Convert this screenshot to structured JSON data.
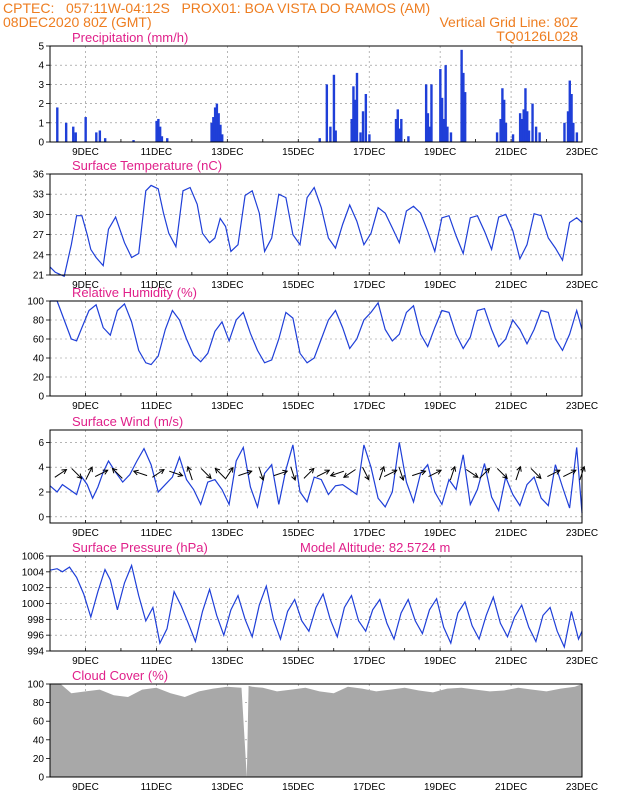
{
  "header": {
    "line1_left": "CPTEC:   057:11W-04:12S   PROX01: BOA VISTA DO RAMOS (AM)",
    "line2_left": "08DEC2020 80Z (GMT)",
    "line2_right": "Vertical Grid Line: 80Z",
    "line3_right": "TQ0126L028"
  },
  "colors": {
    "header": "#ee7d20",
    "title": "#e0208a",
    "series": "#1f3fd8",
    "cloud": "#a8a8a8",
    "grid": "#888888"
  },
  "chart_data": [
    {
      "id": "precip",
      "type": "bar",
      "title": "Precipitation (mm/h)",
      "yticks": [
        0,
        1,
        2,
        3,
        4,
        5
      ],
      "ylim": [
        0,
        5
      ],
      "xticklabels": [
        "9DEC",
        "11DEC",
        "13DEC",
        "15DEC",
        "17DEC",
        "19DEC",
        "21DEC",
        "23DEC"
      ],
      "xlim": [
        8,
        23
      ],
      "x": [
        8.2,
        8.45,
        8.65,
        8.72,
        9.0,
        9.3,
        9.4,
        9.55,
        10.35,
        11.0,
        11.05,
        11.1,
        11.15,
        11.3,
        12.55,
        12.6,
        12.65,
        12.7,
        12.75,
        12.8,
        12.85,
        15.6,
        15.8,
        15.9,
        16.0,
        16.05,
        16.5,
        16.55,
        16.6,
        16.65,
        16.75,
        16.82,
        16.9,
        17.0,
        17.75,
        17.8,
        17.85,
        17.9,
        18.1,
        18.6,
        18.65,
        18.7,
        18.75,
        19.0,
        19.05,
        19.1,
        19.15,
        19.2,
        19.3,
        19.6,
        19.65,
        19.7,
        20.6,
        20.7,
        20.75,
        20.8,
        20.85,
        21.05,
        21.25,
        21.3,
        21.35,
        21.4,
        21.45,
        21.5,
        21.6,
        21.7,
        21.8,
        22.5,
        22.6,
        22.65,
        22.7,
        22.75,
        22.85
      ],
      "values": [
        1.8,
        1.0,
        0.8,
        0.5,
        1.3,
        0.5,
        0.6,
        0.2,
        0.1,
        1.1,
        1.2,
        0.8,
        0.3,
        0.2,
        1.0,
        1.3,
        1.8,
        2.0,
        1.5,
        0.9,
        0.4,
        0.2,
        3.0,
        0.8,
        3.5,
        0.6,
        1.2,
        2.9,
        2.2,
        3.6,
        0.5,
        1.6,
        2.5,
        0.4,
        1.2,
        1.7,
        0.7,
        1.2,
        0.3,
        3.0,
        1.5,
        0.8,
        3.0,
        3.8,
        2.3,
        1.2,
        4.0,
        0.8,
        0.5,
        4.8,
        3.6,
        2.6,
        0.5,
        1.2,
        2.8,
        2.2,
        1.0,
        0.4,
        1.5,
        1.2,
        1.7,
        2.8,
        1.6,
        0.6,
        2.0,
        0.8,
        0.5,
        1.0,
        1.6,
        3.2,
        2.5,
        1.0,
        0.5
      ]
    },
    {
      "id": "temp",
      "type": "line",
      "title": "Surface Temperature (nC)",
      "yticks": [
        21,
        24,
        27,
        30,
        33,
        36
      ],
      "ylim": [
        21,
        36
      ],
      "xticklabels": [
        "9DEC",
        "11DEC",
        "13DEC",
        "15DEC",
        "17DEC",
        "19DEC",
        "21DEC",
        "23DEC"
      ],
      "xlim": [
        8,
        23
      ],
      "x": [
        8,
        8.15,
        8.4,
        8.6,
        8.75,
        8.9,
        9.05,
        9.15,
        9.3,
        9.5,
        9.65,
        9.85,
        10.1,
        10.3,
        10.5,
        10.7,
        10.85,
        11.05,
        11.2,
        11.35,
        11.55,
        11.75,
        11.95,
        12.15,
        12.3,
        12.5,
        12.65,
        12.8,
        12.95,
        13.1,
        13.3,
        13.5,
        13.7,
        13.9,
        14.05,
        14.25,
        14.45,
        14.65,
        14.85,
        15.05,
        15.25,
        15.45,
        15.65,
        15.85,
        16.05,
        16.25,
        16.45,
        16.65,
        16.85,
        17.05,
        17.25,
        17.45,
        17.65,
        17.85,
        18.05,
        18.25,
        18.45,
        18.65,
        18.85,
        19.05,
        19.25,
        19.45,
        19.65,
        19.85,
        20.05,
        20.25,
        20.45,
        20.65,
        20.85,
        21.05,
        21.25,
        21.45,
        21.65,
        21.85,
        22.05,
        22.25,
        22.45,
        22.65,
        22.85,
        23
      ],
      "values": [
        22.2,
        21.4,
        20.8,
        25.5,
        29.8,
        29.8,
        27,
        24.8,
        23.6,
        22.4,
        27.8,
        29.6,
        25.8,
        23.6,
        24.2,
        33.5,
        34.3,
        33.8,
        30.2,
        27.2,
        25.2,
        33.5,
        34,
        31.5,
        27.2,
        25.8,
        26.5,
        29.4,
        28.2,
        24.5,
        25.5,
        32.8,
        33.5,
        30.2,
        24.5,
        26.5,
        33,
        32.5,
        27,
        25.5,
        32.5,
        34,
        31,
        26.5,
        25,
        28.5,
        31.4,
        29,
        25.5,
        27.2,
        31,
        30.2,
        28,
        25.8,
        30.5,
        31.2,
        30.2,
        27.5,
        24.5,
        29.5,
        29.8,
        26.8,
        24.2,
        29.5,
        29.8,
        27.5,
        24.8,
        29.6,
        30,
        27.6,
        23.4,
        25.5,
        30.1,
        29.8,
        26.5,
        25,
        23.2,
        28.8,
        29.5,
        28.8
      ]
    },
    {
      "id": "rh",
      "type": "line",
      "title": "Relative Humidity (%)",
      "yticks": [
        0,
        20,
        40,
        60,
        80,
        100
      ],
      "ylim": [
        0,
        100
      ],
      "xticklabels": [
        "9DEC",
        "11DEC",
        "13DEC",
        "15DEC",
        "17DEC",
        "19DEC",
        "21DEC",
        "23DEC"
      ],
      "xlim": [
        8,
        23
      ],
      "x": [
        8,
        8.2,
        8.4,
        8.6,
        8.75,
        8.9,
        9.1,
        9.3,
        9.5,
        9.7,
        9.9,
        10.1,
        10.3,
        10.5,
        10.7,
        10.85,
        11.05,
        11.25,
        11.45,
        11.65,
        11.85,
        12.05,
        12.25,
        12.45,
        12.65,
        12.85,
        13.05,
        13.25,
        13.45,
        13.65,
        13.85,
        14.05,
        14.25,
        14.45,
        14.65,
        14.85,
        15.05,
        15.25,
        15.45,
        15.65,
        15.85,
        16.05,
        16.25,
        16.45,
        16.65,
        16.85,
        17.05,
        17.25,
        17.45,
        17.65,
        17.85,
        18.05,
        18.25,
        18.45,
        18.65,
        18.85,
        19.05,
        19.25,
        19.45,
        19.65,
        19.85,
        20.05,
        20.25,
        20.45,
        20.65,
        20.85,
        21.05,
        21.25,
        21.45,
        21.65,
        21.85,
        22.05,
        22.25,
        22.45,
        22.65,
        22.85,
        23
      ],
      "values": [
        100,
        100,
        80,
        60,
        58,
        72,
        90,
        96,
        72,
        64,
        90,
        97,
        78,
        48,
        35,
        33,
        42,
        70,
        90,
        80,
        60,
        43,
        36,
        45,
        68,
        78,
        58,
        80,
        88,
        66,
        48,
        35,
        38,
        60,
        88,
        82,
        45,
        35,
        40,
        60,
        80,
        90,
        72,
        50,
        60,
        80,
        88,
        98,
        70,
        58,
        65,
        88,
        95,
        65,
        52,
        72,
        90,
        88,
        65,
        50,
        62,
        90,
        92,
        70,
        52,
        60,
        80,
        70,
        55,
        70,
        90,
        88,
        60,
        48,
        65,
        90,
        70
      ]
    },
    {
      "id": "wind",
      "type": "line",
      "title": "Surface Wind (m/s)",
      "yticks": [
        0,
        2,
        4,
        6
      ],
      "ylim": [
        -0.5,
        7
      ],
      "xticklabels": [
        "9DEC",
        "11DEC",
        "13DEC",
        "15DEC",
        "17DEC",
        "19DEC",
        "21DEC",
        "23DEC"
      ],
      "xlim": [
        8,
        23
      ],
      "x": [
        8,
        8.2,
        8.35,
        8.55,
        8.75,
        8.9,
        9.05,
        9.2,
        9.35,
        9.5,
        9.65,
        9.85,
        10.05,
        10.25,
        10.45,
        10.65,
        10.85,
        11.05,
        11.25,
        11.45,
        11.65,
        11.85,
        12.05,
        12.25,
        12.45,
        12.65,
        12.85,
        13.05,
        13.25,
        13.45,
        13.65,
        13.85,
        14.05,
        14.25,
        14.45,
        14.65,
        14.85,
        15.05,
        15.25,
        15.45,
        15.65,
        15.85,
        16.05,
        16.25,
        16.45,
        16.65,
        16.85,
        17.05,
        17.25,
        17.45,
        17.65,
        17.85,
        18.05,
        18.25,
        18.45,
        18.65,
        18.85,
        19.05,
        19.25,
        19.45,
        19.65,
        19.85,
        20.05,
        20.25,
        20.45,
        20.65,
        20.85,
        21.05,
        21.25,
        21.45,
        21.65,
        21.85,
        22.05,
        22.25,
        22.45,
        22.65,
        22.85,
        23
      ],
      "values": [
        2.5,
        2.0,
        2.6,
        2.2,
        1.8,
        3.2,
        2.6,
        1.5,
        2.4,
        3.6,
        4.5,
        3.6,
        2.8,
        3.4,
        4.5,
        5.5,
        4.2,
        2.0,
        2.6,
        3.2,
        4.8,
        3.0,
        2.2,
        1.0,
        2.8,
        3.0,
        2.2,
        1.0,
        4.5,
        5.6,
        2.4,
        0.8,
        3.5,
        4.2,
        1.0,
        3.8,
        5.8,
        2.0,
        1.2,
        3.2,
        3.0,
        1.8,
        2.5,
        2.6,
        2.2,
        1.8,
        5.8,
        4.0,
        1.5,
        0.8,
        2.0,
        6.0,
        2.8,
        1.2,
        3.5,
        4.2,
        2.0,
        1.0,
        3.0,
        2.2,
        5.0,
        1.0,
        2.2,
        4.3,
        1.6,
        0.5,
        3.2,
        1.8,
        0.9,
        2.6,
        3.2,
        1.5,
        0.9,
        4.2,
        2.4,
        0.7,
        5.6,
        0.3
      ]
    },
    {
      "id": "pres",
      "type": "line",
      "title": "Surface Pressure (hPa)",
      "annotation": "Model Altitude: 82.5724 m",
      "yticks": [
        994,
        996,
        998,
        1000,
        1002,
        1004,
        1006
      ],
      "ylim": [
        994,
        1006
      ],
      "xticklabels": [
        "9DEC",
        "11DEC",
        "13DEC",
        "15DEC",
        "17DEC",
        "19DEC",
        "21DEC",
        "23DEC"
      ],
      "xlim": [
        8,
        23
      ],
      "x": [
        8,
        8.2,
        8.35,
        8.55,
        8.75,
        8.95,
        9.15,
        9.35,
        9.55,
        9.7,
        9.9,
        10.1,
        10.3,
        10.5,
        10.7,
        10.9,
        11.1,
        11.3,
        11.5,
        11.7,
        11.9,
        12.1,
        12.3,
        12.5,
        12.7,
        12.9,
        13.1,
        13.3,
        13.5,
        13.7,
        13.9,
        14.1,
        14.3,
        14.5,
        14.7,
        14.9,
        15.1,
        15.3,
        15.5,
        15.7,
        15.9,
        16.1,
        16.3,
        16.5,
        16.7,
        16.9,
        17.1,
        17.3,
        17.5,
        17.7,
        17.9,
        18.1,
        18.3,
        18.5,
        18.7,
        18.9,
        19.1,
        19.3,
        19.5,
        19.7,
        19.9,
        20.1,
        20.3,
        20.5,
        20.7,
        20.9,
        21.1,
        21.3,
        21.5,
        21.7,
        21.9,
        22.1,
        22.3,
        22.5,
        22.7,
        22.9,
        23
      ],
      "values": [
        1004.2,
        1004.4,
        1004.0,
        1004.6,
        1003.3,
        1001.2,
        998.3,
        1001.5,
        1004.3,
        1003.0,
        999.2,
        1002.6,
        1004.8,
        1001.0,
        997.8,
        999.5,
        995.0,
        996.8,
        1001.5,
        999.7,
        997.5,
        995.2,
        999.0,
        1001.8,
        998.5,
        996.0,
        999.2,
        1001.0,
        998.0,
        995.8,
        999.8,
        1002.2,
        998.0,
        995.5,
        999.0,
        1000.5,
        997.8,
        996.5,
        999.5,
        1001.2,
        998.0,
        995.8,
        999.5,
        1001.0,
        997.8,
        996.5,
        999.2,
        1000.5,
        997.5,
        995.5,
        998.8,
        1000.5,
        997.8,
        996.2,
        999.2,
        1000.6,
        997.0,
        995.0,
        998.8,
        1000.2,
        997.2,
        995.5,
        998.5,
        1000.8,
        997.5,
        995.8,
        998.3,
        999.8,
        997.0,
        995.2,
        998.5,
        999.5,
        996.5,
        994.5,
        999.0,
        995.5,
        996.5
      ]
    },
    {
      "id": "cloud",
      "type": "area",
      "title": "Cloud Cover (%)",
      "yticks": [
        0,
        20,
        40,
        60,
        80,
        100
      ],
      "ylim": [
        0,
        100
      ],
      "xticklabels": [
        "9DEC",
        "11DEC",
        "13DEC",
        "15DEC",
        "17DEC",
        "19DEC",
        "21DEC",
        "23DEC"
      ],
      "xlim": [
        8,
        23
      ],
      "x": [
        8,
        8.3,
        8.6,
        9.0,
        9.4,
        9.8,
        10.2,
        10.6,
        11.0,
        11.4,
        11.8,
        12.2,
        12.6,
        13.0,
        13.4,
        13.55,
        13.6,
        13.7,
        14.0,
        14.4,
        14.8,
        15.2,
        15.6,
        16.0,
        16.4,
        16.8,
        17.2,
        17.6,
        18.0,
        18.4,
        18.8,
        19.2,
        19.6,
        20.0,
        20.4,
        20.8,
        21.2,
        21.6,
        22.0,
        22.4,
        22.8,
        23
      ],
      "values": [
        100,
        100,
        90,
        92,
        94,
        88,
        86,
        94,
        96,
        90,
        86,
        92,
        95,
        97,
        96,
        0,
        98,
        97,
        96,
        92,
        94,
        96,
        92,
        90,
        97,
        95,
        92,
        94,
        96,
        93,
        91,
        95,
        96,
        94,
        92,
        93,
        96,
        94,
        92,
        95,
        97,
        100
      ]
    }
  ],
  "wind_vectors": {
    "x": [
      8.3,
      8.75,
      9.1,
      9.45,
      9.9,
      10.55,
      11.05,
      11.55,
      11.95,
      12.4,
      12.8,
      13.05,
      13.5,
      13.95,
      14.5,
      14.85,
      15.3,
      15.7,
      16.1,
      16.45,
      16.9,
      17.35,
      17.6,
      17.9,
      18.4,
      18.85,
      19.35,
      19.9,
      20.25,
      20.75,
      21.2,
      21.7,
      22.2,
      22.65,
      23
    ],
    "u": [
      3,
      2,
      1,
      2,
      -2,
      -3,
      3,
      3,
      -1,
      2,
      -1,
      2,
      3,
      1,
      3,
      1,
      3,
      2,
      -3,
      -3,
      1,
      1,
      2,
      1,
      3,
      2,
      1,
      3,
      2,
      2,
      1,
      2,
      2,
      2,
      1
    ],
    "v": [
      2,
      -2,
      2,
      1,
      2,
      1,
      2,
      -1,
      3,
      -2,
      1,
      3,
      1,
      -3,
      1,
      -3,
      3,
      1,
      -1,
      -2,
      -2,
      3,
      1,
      -3,
      1,
      1,
      3,
      -2,
      2,
      -2,
      3,
      -2,
      1,
      1,
      3
    ]
  }
}
